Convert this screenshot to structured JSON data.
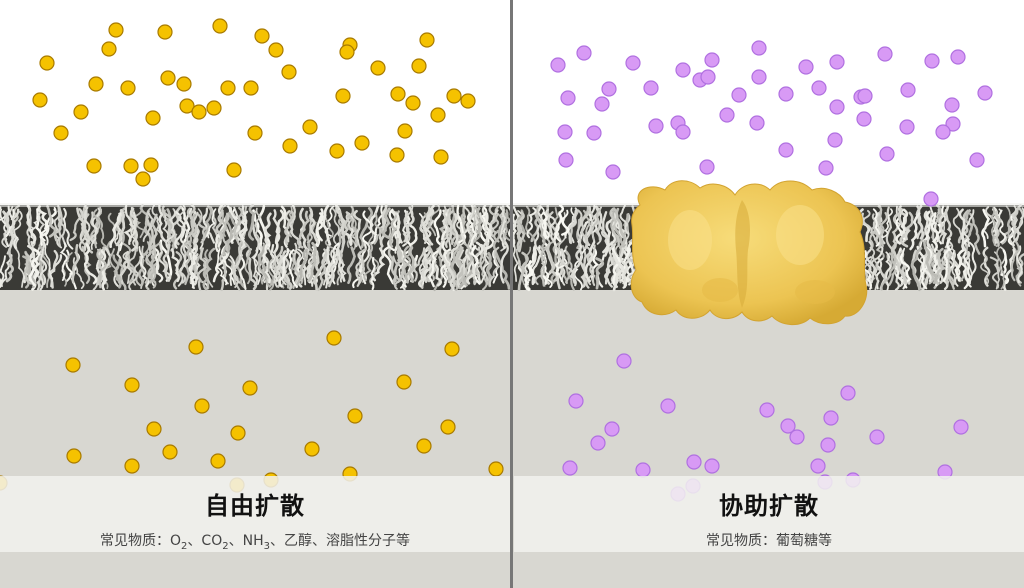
{
  "left_panel": {
    "title": "自由扩散",
    "subtitle_prefix": "常见物质：O",
    "subtitle_sub1": "2",
    "subtitle_mid1": "、CO",
    "subtitle_sub2": "2",
    "subtitle_mid2": "、NH",
    "subtitle_sub3": "3",
    "subtitle_suffix": "、乙醇、溶脂性分子等"
  },
  "right_panel": {
    "title": "协助扩散",
    "subtitle": "常见物质：葡萄糖等"
  },
  "colors": {
    "free_molecule": "#f5c200",
    "free_molecule_stroke": "#a87a00",
    "assisted_molecule": "#d89af5",
    "assisted_molecule_stroke": "#b070e0",
    "channel_protein": "#f0c95a",
    "membrane_dark": "#3a3a36",
    "membrane_light": "#e8e8e2",
    "intracellular": "#d8d7d1",
    "divider": "#777777"
  }
}
